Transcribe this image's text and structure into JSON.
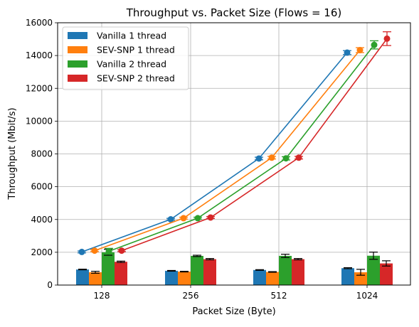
{
  "chart_data": {
    "type": "bar",
    "title": "Throughput vs. Packet Size (Flows = 16)",
    "xlabel": "Packet Size (Byte)",
    "ylabel": "Throughput (Mbit/s)",
    "categories": [
      "128",
      "256",
      "512",
      "1024"
    ],
    "ylim": [
      0,
      16000
    ],
    "yticks": [
      0,
      2000,
      4000,
      6000,
      8000,
      10000,
      12000,
      14000,
      16000
    ],
    "grid": true,
    "legend_position": "upper-left",
    "series": [
      {
        "name": "Vanilla 1 thread",
        "color": "#1f77b4",
        "bar_values": [
          950,
          870,
          920,
          1030
        ],
        "bar_errors": [
          20,
          20,
          20,
          30
        ],
        "line_values": [
          2020,
          4010,
          7720,
          14180
        ],
        "line_errors": [
          60,
          60,
          80,
          120
        ]
      },
      {
        "name": "SEV-SNP 1 thread",
        "color": "#ff7f0e",
        "bar_values": [
          780,
          820,
          800,
          780
        ],
        "bar_errors": [
          60,
          20,
          20,
          180
        ],
        "line_values": [
          2100,
          4080,
          7770,
          14330
        ],
        "line_errors": [
          60,
          60,
          80,
          150
        ]
      },
      {
        "name": "Vanilla 2 thread",
        "color": "#2ca02c",
        "bar_values": [
          2000,
          1780,
          1780,
          1790
        ],
        "bar_errors": [
          180,
          40,
          100,
          220
        ],
        "line_values": [
          2060,
          4080,
          7730,
          14650
        ],
        "line_errors": [
          180,
          60,
          100,
          250
        ]
      },
      {
        "name": "SEV-SNP 2 thread",
        "color": "#d62728",
        "bar_values": [
          1420,
          1580,
          1580,
          1320
        ],
        "bar_errors": [
          40,
          40,
          40,
          160
        ],
        "line_values": [
          2100,
          4120,
          7770,
          15030
        ],
        "line_errors": [
          60,
          60,
          80,
          420
        ]
      }
    ]
  }
}
